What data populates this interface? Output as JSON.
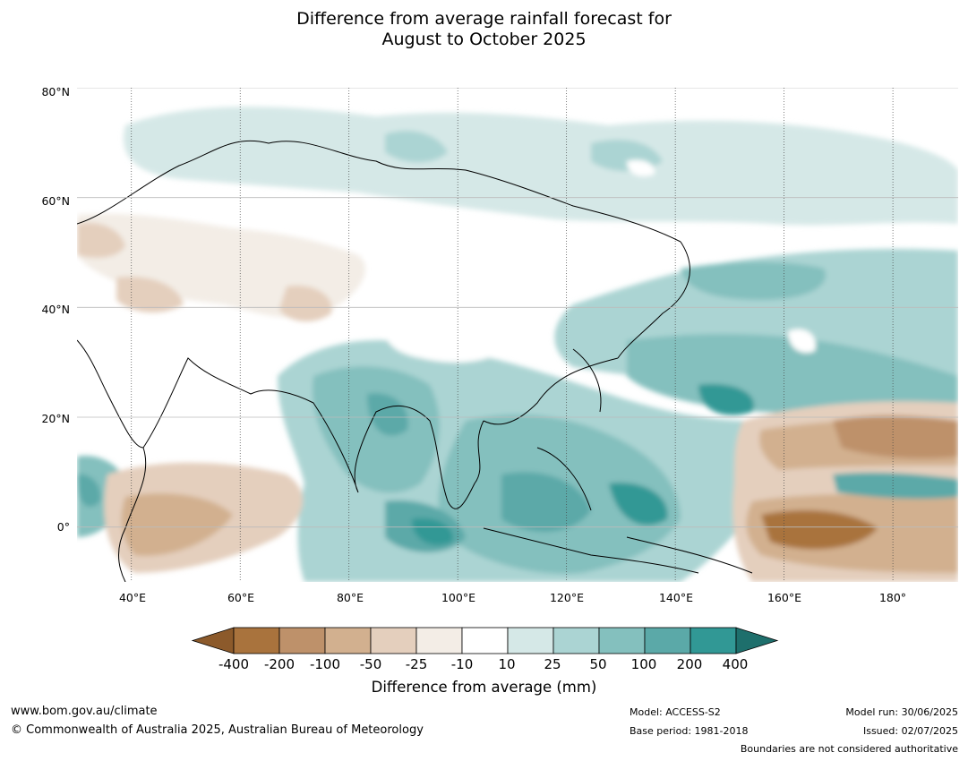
{
  "title": {
    "line1": "Difference from average rainfall forecast for",
    "line2": "August to October 2025"
  },
  "map": {
    "lat_ticks": [
      "80°N",
      "60°N",
      "40°N",
      "20°N",
      "0°"
    ],
    "lon_ticks": [
      "40°E",
      "60°E",
      "80°E",
      "100°E",
      "120°E",
      "140°E",
      "160°E",
      "180°"
    ],
    "lat_range": [
      -10,
      80
    ],
    "lon_range": [
      30,
      192
    ]
  },
  "colorbar": {
    "label": "Difference from average (mm)",
    "ticks": [
      "-400",
      "-200",
      "-100",
      "-50",
      "-25",
      "-10",
      "10",
      "25",
      "50",
      "100",
      "200",
      "400"
    ],
    "colors": [
      "#a9733d",
      "#be916a",
      "#d2b08f",
      "#e4cfbd",
      "#f3ede6",
      "#ffffff",
      "#d5e8e7",
      "#abd4d3",
      "#84c0be",
      "#5ba9a8",
      "#319895",
      "#1e6f6c"
    ],
    "extend_low_color": "#8c5a2b",
    "extend_high_color": "#1e6f6c"
  },
  "footer": {
    "url": "www.bom.gov.au/climate",
    "copyright": "© Commonwealth of Australia 2025, Australian Bureau of Meteorology",
    "model": "Model: ACCESS-S2",
    "base_period": "Base period: 1981-2018",
    "model_run": "Model run: 30/06/2025",
    "issued": "Issued: 02/07/2025",
    "disclaimer": "Boundaries are not considered authoritative"
  }
}
